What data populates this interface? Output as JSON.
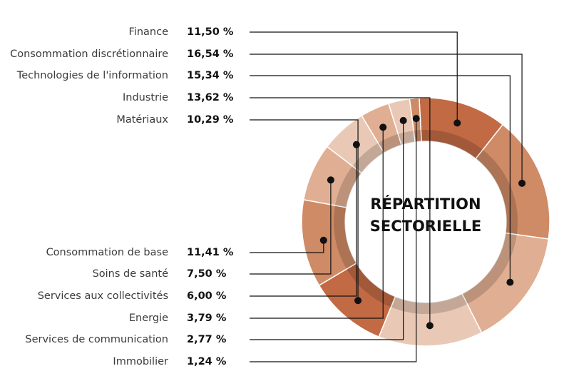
{
  "chart_data": {
    "type": "pie",
    "title": "RÉPARTITION SECTORIELLE",
    "title_lines": [
      "RÉPARTITION",
      "SECTORIELLE"
    ],
    "donut": true,
    "start_angle_deg": 90,
    "direction": "clockwise",
    "slices": [
      {
        "label": "Finance",
        "value_text": "11,50 %",
        "value": 11.5,
        "color": "#c26a44"
      },
      {
        "label": "Consommation discrétionnaire",
        "value_text": "16,54 %",
        "value": 16.54,
        "color": "#cf8a66"
      },
      {
        "label": "Technologies de l'information",
        "value_text": "15,34 %",
        "value": 15.34,
        "color": "#e0ae92"
      },
      {
        "label": "Industrie",
        "value_text": "13,62 %",
        "value": 13.62,
        "color": "#e9c9b6"
      },
      {
        "label": "Matériaux",
        "value_text": "10,29 %",
        "value": 10.29,
        "color": "#c26a44"
      },
      {
        "label": "Consommation de base",
        "value_text": "11,41 %",
        "value": 11.41,
        "color": "#cf8a66"
      },
      {
        "label": "Soins de santé",
        "value_text": "7,50 %",
        "value": 7.5,
        "color": "#e0ae92"
      },
      {
        "label": "Services aux collectivités",
        "value_text": "6,00 %",
        "value": 6.0,
        "color": "#e9c9b6"
      },
      {
        "label": "Energie",
        "value_text": "3,79 %",
        "value": 3.79,
        "color": "#e0ae92"
      },
      {
        "label": "Services de communication",
        "value_text": "2,77 %",
        "value": 2.77,
        "color": "#e9c9b6"
      },
      {
        "label": "Immobilier",
        "value_text": "1,24 %",
        "value": 1.24,
        "color": "#cf8a66"
      }
    ]
  }
}
